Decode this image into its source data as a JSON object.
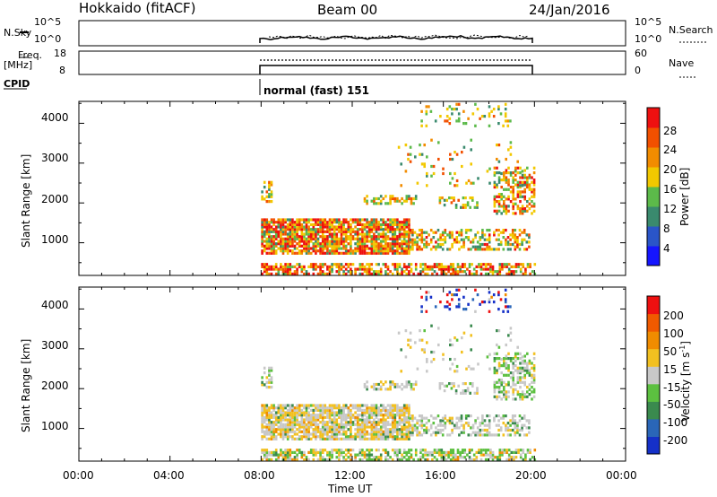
{
  "header": {
    "site": "Hokkaido (fitACF)",
    "beam": "Beam 00",
    "date": "24/Jan/2016"
  },
  "small_panels": {
    "nsky_label": "N.Sky",
    "nsky_ticks": [
      "10^5",
      "10^0"
    ],
    "nsky_right_ticks": [
      "10^5",
      "10^0"
    ],
    "nsearch_label": "N.Search",
    "freq_label_1": "Freq.",
    "freq_label_2": "[MHz]",
    "freq_ticks": [
      "18",
      "8"
    ],
    "nave_ticks": [
      "60",
      "0"
    ],
    "nave_label": "Nave",
    "cpid_label": "CPID",
    "cpid_value": "normal (fast) 151"
  },
  "chart_data": [
    {
      "type": "heatmap",
      "name": "power",
      "ylabel": "Slant Range [km]",
      "yticks": [
        "4000",
        "3000",
        "2000",
        "1000"
      ],
      "ylim": [
        180,
        4550
      ],
      "xlim": [
        0,
        24
      ],
      "colorbar_label": "Power [dB]",
      "colorbar_ticks": [
        "28",
        "24",
        "20",
        "16",
        "12",
        "8",
        "4"
      ],
      "colors": [
        "#1515ff",
        "#2a55c8",
        "#3a8a6e",
        "#5cba4a",
        "#f2c800",
        "#f28c00",
        "#f25000",
        "#ee1010"
      ]
    },
    {
      "type": "heatmap",
      "name": "velocity",
      "ylabel": "Slant Range [km]",
      "yticks": [
        "4000",
        "3000",
        "2000",
        "1000"
      ],
      "ylim": [
        180,
        4550
      ],
      "xlim": [
        0,
        24
      ],
      "xlabel": "Time UT",
      "xticks": [
        "00:00",
        "04:00",
        "08:00",
        "12:00",
        "16:00",
        "20:00",
        "00:00"
      ],
      "colorbar_label": "Velocity [m s",
      "colorbar_unit_sup": "-1",
      "colorbar_unit_close": "]",
      "colorbar_ticks": [
        "200",
        "100",
        "50",
        "15",
        "-15",
        "-50",
        "-100",
        "-200"
      ],
      "colors": [
        "#1530c8",
        "#2a66b8",
        "#3a8a4e",
        "#5cc040",
        "#c8c8c8",
        "#f2c020",
        "#f08c00",
        "#f05a00",
        "#ee1010"
      ]
    }
  ]
}
